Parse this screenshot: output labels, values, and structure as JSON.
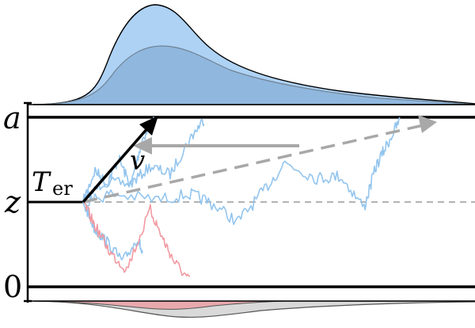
{
  "labels": {
    "upper_bound": "a",
    "start_point": "z",
    "lower_bound": "0",
    "nondecision_main": "T",
    "nondecision_sub": "er",
    "drift": "v"
  },
  "colors": {
    "upper_density_fill": "#aed2f4",
    "upper_density_inner": "#8db5dc",
    "lower_density_fill": "#e8a9ad",
    "lower_density_gray": "#d9d9d9",
    "upper_path": "#93c5ee",
    "lower_path": "#f19aa2",
    "arrow_gray": "#a8a8a8",
    "axis": "#000000"
  }
}
